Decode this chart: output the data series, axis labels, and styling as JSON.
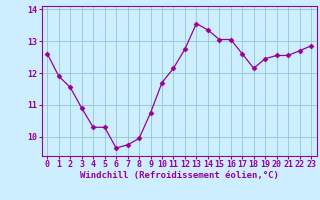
{
  "x": [
    0,
    1,
    2,
    3,
    4,
    5,
    6,
    7,
    8,
    9,
    10,
    11,
    12,
    13,
    14,
    15,
    16,
    17,
    18,
    19,
    20,
    21,
    22,
    23
  ],
  "y": [
    12.6,
    11.9,
    11.55,
    10.9,
    10.3,
    10.3,
    9.65,
    9.75,
    9.95,
    10.75,
    11.7,
    12.15,
    12.75,
    13.55,
    13.35,
    13.05,
    13.05,
    12.6,
    12.15,
    12.45,
    12.55,
    12.55,
    12.7,
    12.85
  ],
  "line_color": "#990099",
  "marker": "D",
  "markersize": 2.5,
  "bg_color": "#cceeff",
  "grid_color": "#99cccc",
  "xlabel": "Windchill (Refroidissement éolien,°C)",
  "label_color": "#990099",
  "ylim": [
    9.4,
    14.1
  ],
  "yticks": [
    10,
    11,
    12,
    13,
    14
  ],
  "xlim": [
    -0.5,
    23.5
  ],
  "xticks": [
    0,
    1,
    2,
    3,
    4,
    5,
    6,
    7,
    8,
    9,
    10,
    11,
    12,
    13,
    14,
    15,
    16,
    17,
    18,
    19,
    20,
    21,
    22,
    23
  ],
  "xlabel_fontsize": 6.5,
  "tick_fontsize": 6
}
